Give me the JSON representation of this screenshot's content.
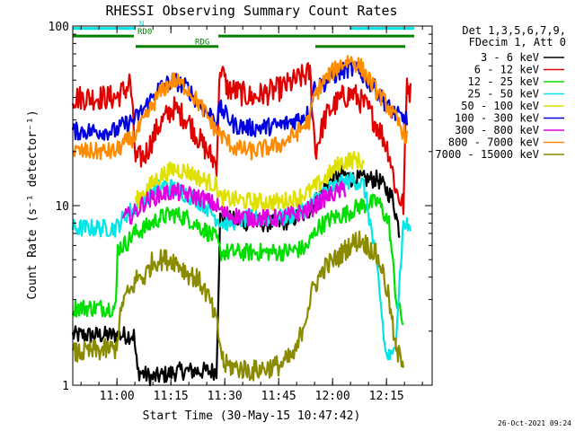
{
  "chart_data": {
    "type": "line",
    "title": "RHESSI Observing Summary Count Rates",
    "xlabel": "Start Time (30-May-15 10:47:42)",
    "ylabel": "Count Rate (s⁻¹ detector⁻¹)",
    "ylog": true,
    "ylim": [
      1,
      100
    ],
    "xlim_minutes": [
      0,
      100
    ],
    "x_tick_labels": [
      "11:00",
      "11:15",
      "11:30",
      "11:45",
      "12:00",
      "12:15"
    ],
    "x_tick_minutes": [
      12.3,
      27.3,
      42.3,
      57.3,
      72.3,
      87.3
    ],
    "y_tick_labels": [
      "1",
      "10",
      "100"
    ],
    "y_tick_values": [
      1,
      10,
      100
    ],
    "legend_header": [
      "Det 1,3,5,6,7,9,",
      "FDecim 1, Att 0"
    ],
    "flags": [
      {
        "label": "N",
        "color": "#00e5e5",
        "level": 97,
        "segments": [
          [
            0,
            17.5
          ],
          [
            77,
            95
          ]
        ]
      },
      {
        "label": "RD0",
        "color": "#008000",
        "level": 88,
        "segments": [
          [
            0,
            17
          ],
          [
            40.5,
            95
          ]
        ]
      },
      {
        "label": "RDG",
        "color": "#008000",
        "level": 77,
        "segments": [
          [
            17.5,
            40.5
          ],
          [
            67.5,
            92.5
          ]
        ]
      }
    ],
    "series": [
      {
        "name": "3 - 6 keV",
        "color": "#000000",
        "noise": 0.05,
        "points": [
          [
            0,
            1.9
          ],
          [
            17,
            1.9
          ],
          [
            18,
            1.2
          ],
          [
            22,
            1.1
          ],
          [
            30,
            1.2
          ],
          [
            40,
            1.2
          ],
          [
            41,
            8.5
          ],
          [
            50,
            8.0
          ],
          [
            58,
            8.0
          ],
          [
            65,
            9.0
          ],
          [
            72,
            14
          ],
          [
            75,
            15
          ],
          [
            78,
            14
          ],
          [
            85,
            14
          ],
          [
            89,
            11
          ],
          [
            91,
            7
          ]
        ]
      },
      {
        "name": "6 - 12 keV",
        "color": "#e00000",
        "noise": 0.07,
        "points": [
          [
            0,
            40
          ],
          [
            12,
            40
          ],
          [
            15,
            45
          ],
          [
            16,
            50
          ],
          [
            17.5,
            18
          ],
          [
            20,
            19
          ],
          [
            24,
            28
          ],
          [
            28,
            35
          ],
          [
            32,
            30
          ],
          [
            36,
            22
          ],
          [
            40,
            17
          ],
          [
            41,
            60
          ],
          [
            43,
            45
          ],
          [
            50,
            40
          ],
          [
            58,
            45
          ],
          [
            66,
            55
          ],
          [
            67.5,
            20
          ],
          [
            70,
            30
          ],
          [
            72,
            35
          ],
          [
            75,
            40
          ],
          [
            78,
            42
          ],
          [
            82,
            35
          ],
          [
            86,
            25
          ],
          [
            88,
            20
          ],
          [
            90,
            12
          ],
          [
            92,
            10
          ],
          [
            93,
            50
          ],
          [
            94,
            42
          ]
        ]
      },
      {
        "name": "12 - 25 keV",
        "color": "#00e000",
        "noise": 0.05,
        "points": [
          [
            0,
            2.7
          ],
          [
            12,
            2.7
          ],
          [
            12.5,
            5.8
          ],
          [
            15,
            6.2
          ],
          [
            17,
            7.0
          ],
          [
            20,
            7.5
          ],
          [
            24,
            8.5
          ],
          [
            28,
            9.0
          ],
          [
            32,
            8.5
          ],
          [
            36,
            7.5
          ],
          [
            40,
            6.5
          ],
          [
            41,
            5.5
          ],
          [
            50,
            5.5
          ],
          [
            58,
            5.5
          ],
          [
            65,
            5.8
          ],
          [
            68,
            7.5
          ],
          [
            72,
            8.5
          ],
          [
            76,
            9.0
          ],
          [
            80,
            10
          ],
          [
            85,
            10.5
          ],
          [
            88,
            8
          ],
          [
            90,
            3
          ],
          [
            92,
            2.2
          ]
        ]
      },
      {
        "name": "25 - 50 keV",
        "color": "#00e5e5",
        "noise": 0.05,
        "points": [
          [
            0,
            7.5
          ],
          [
            12,
            7.5
          ],
          [
            15,
            9.0
          ],
          [
            18,
            10
          ],
          [
            22,
            12
          ],
          [
            26,
            13
          ],
          [
            30,
            12
          ],
          [
            34,
            11
          ],
          [
            37,
            10
          ],
          [
            40,
            8.5
          ],
          [
            42,
            8
          ],
          [
            50,
            8.5
          ],
          [
            58,
            8.5
          ],
          [
            62,
            9
          ],
          [
            66,
            10
          ],
          [
            70,
            12
          ],
          [
            74,
            13
          ],
          [
            78,
            14
          ],
          [
            81,
            13
          ],
          [
            83,
            7.5
          ],
          [
            85,
            4
          ],
          [
            87,
            1.5
          ],
          [
            89,
            1.4
          ],
          [
            90,
            2
          ],
          [
            92,
            8
          ],
          [
            94,
            7.5
          ]
        ]
      },
      {
        "name": "50 - 100 keV",
        "color": "#e0e000",
        "noise": 0.05,
        "points": [
          [
            17.5,
            10.5
          ],
          [
            20,
            12
          ],
          [
            24,
            14.5
          ],
          [
            28,
            16
          ],
          [
            32,
            15.5
          ],
          [
            36,
            14
          ],
          [
            40,
            13
          ],
          [
            41,
            11
          ],
          [
            50,
            10.5
          ],
          [
            58,
            10.5
          ],
          [
            62,
            11
          ],
          [
            66,
            12
          ],
          [
            70,
            14
          ],
          [
            74,
            17
          ],
          [
            77,
            18
          ],
          [
            79,
            18
          ],
          [
            81,
            17
          ]
        ]
      },
      {
        "name": "100 - 300 keV",
        "color": "#0000e0",
        "noise": 0.05,
        "points": [
          [
            0,
            26
          ],
          [
            12,
            26
          ],
          [
            14,
            28
          ],
          [
            17,
            30
          ],
          [
            20,
            35
          ],
          [
            24,
            45
          ],
          [
            28,
            50
          ],
          [
            32,
            45
          ],
          [
            36,
            35
          ],
          [
            40,
            30
          ],
          [
            41,
            35
          ],
          [
            45,
            28
          ],
          [
            50,
            27
          ],
          [
            58,
            28
          ],
          [
            62,
            30
          ],
          [
            66,
            33
          ],
          [
            67,
            45
          ],
          [
            70,
            48
          ],
          [
            74,
            55
          ],
          [
            77,
            58
          ],
          [
            80,
            55
          ],
          [
            84,
            45
          ],
          [
            88,
            35
          ],
          [
            90,
            32
          ],
          [
            93,
            30
          ]
        ]
      },
      {
        "name": "300 - 800 keV",
        "color": "#e000e0",
        "noise": 0.05,
        "points": [
          [
            14,
            8.5
          ],
          [
            17,
            9
          ],
          [
            20,
            10.5
          ],
          [
            24,
            11.5
          ],
          [
            28,
            12
          ],
          [
            32,
            11.5
          ],
          [
            36,
            11
          ],
          [
            40,
            10
          ],
          [
            42,
            9
          ],
          [
            50,
            8.5
          ],
          [
            58,
            8.5
          ],
          [
            62,
            9
          ],
          [
            66,
            9.5
          ],
          [
            70,
            11
          ],
          [
            74,
            12
          ],
          [
            76,
            12.5
          ]
        ]
      },
      {
        "name": "800 - 7000 keV",
        "color": "#ff8c00",
        "noise": 0.05,
        "points": [
          [
            0,
            20
          ],
          [
            12,
            20
          ],
          [
            14,
            22
          ],
          [
            17,
            24
          ],
          [
            20,
            30
          ],
          [
            24,
            42
          ],
          [
            28,
            50
          ],
          [
            32,
            45
          ],
          [
            36,
            35
          ],
          [
            40,
            26
          ],
          [
            41,
            25
          ],
          [
            45,
            21
          ],
          [
            50,
            20
          ],
          [
            58,
            22
          ],
          [
            62,
            25
          ],
          [
            66,
            30
          ],
          [
            67,
            40
          ],
          [
            70,
            50
          ],
          [
            74,
            60
          ],
          [
            77,
            65
          ],
          [
            80,
            60
          ],
          [
            84,
            45
          ],
          [
            88,
            35
          ],
          [
            90,
            30
          ],
          [
            93,
            24
          ]
        ]
      },
      {
        "name": "7000 - 15000 keV",
        "color": "#8b8b00",
        "noise": 0.06,
        "points": [
          [
            0,
            1.5
          ],
          [
            12,
            1.6
          ],
          [
            14,
            3
          ],
          [
            16,
            3.3
          ],
          [
            18,
            4.0
          ],
          [
            20,
            4.0
          ],
          [
            22,
            4.8
          ],
          [
            24,
            5.0
          ],
          [
            26,
            5.0
          ],
          [
            28,
            5.0
          ],
          [
            30,
            4.6
          ],
          [
            32,
            4.2
          ],
          [
            34,
            4.0
          ],
          [
            36,
            3.6
          ],
          [
            38,
            3.0
          ],
          [
            40,
            2.2
          ],
          [
            42,
            1.3
          ],
          [
            50,
            1.2
          ],
          [
            58,
            1.3
          ],
          [
            62,
            1.5
          ],
          [
            65,
            2.5
          ],
          [
            67,
            3.5
          ],
          [
            70,
            4.5
          ],
          [
            74,
            5.2
          ],
          [
            77,
            6.0
          ],
          [
            80,
            6.5
          ],
          [
            84,
            5.5
          ],
          [
            86,
            4.5
          ],
          [
            88,
            3.0
          ],
          [
            90,
            1.5
          ],
          [
            92,
            1.4
          ]
        ]
      }
    ],
    "footer_date": "26-Oct-2021 09:24"
  }
}
